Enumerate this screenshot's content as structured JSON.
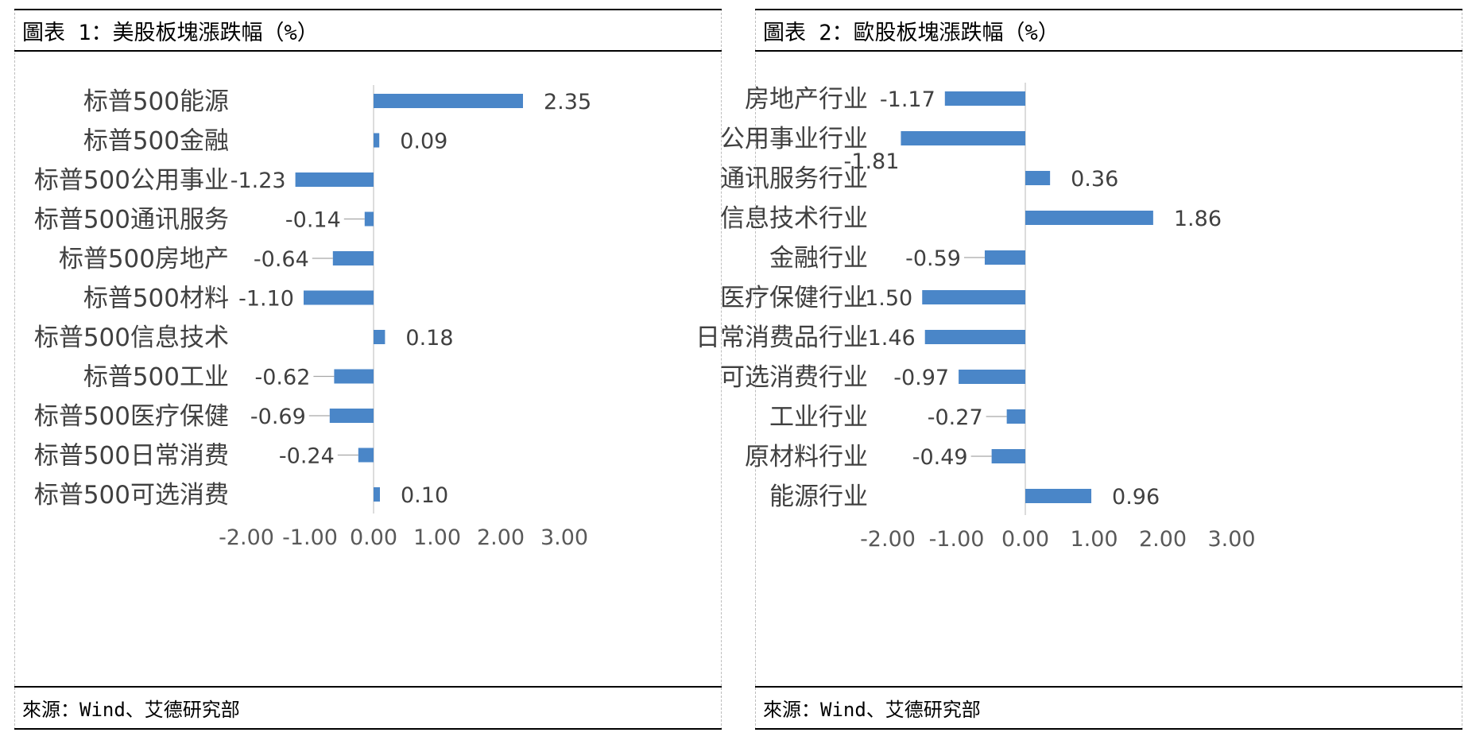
{
  "panels": {
    "us": {
      "title": "圖表 1：美股板塊漲跌幅（%）",
      "source": "來源：Wind、艾德研究部"
    },
    "eu": {
      "title": "圖表 2：歐股板塊漲跌幅（%）",
      "source": "來源：Wind、艾德研究部"
    }
  },
  "colors": {
    "bar": "#4a86c8",
    "text": "#404040",
    "axis": "#d0d0d0"
  },
  "chart_data": [
    {
      "type": "bar",
      "orientation": "horizontal",
      "categories": [
        "标普500能源",
        "标普500金融",
        "标普500公用事业",
        "标普500通讯服务",
        "标普500房地产",
        "标普500材料",
        "标普500信息技术",
        "标普500工业",
        "标普500医疗保健",
        "标普500日常消费",
        "标普500可选消费"
      ],
      "values": [
        2.35,
        0.09,
        -1.23,
        -0.14,
        -0.64,
        -1.1,
        0.18,
        -0.62,
        -0.69,
        -0.24,
        0.1
      ],
      "value_labels": [
        "2.35",
        "0.09",
        "-1.23",
        "-0.14",
        "-0.64",
        "-1.10",
        "0.18",
        "-0.62",
        "-0.69",
        "-0.24",
        "0.10"
      ],
      "xlim": [
        -2.0,
        3.0
      ],
      "ticks": [
        "-2.00",
        "-1.00",
        "0.00",
        "1.00",
        "2.00",
        "3.00"
      ],
      "title": "",
      "xlabel": "",
      "ylabel": "",
      "grid": false
    },
    {
      "type": "bar",
      "orientation": "horizontal",
      "categories": [
        "房地产行业",
        "公用事业行业",
        "通讯服务行业",
        "信息技术行业",
        "金融行业",
        "医疗保健行业",
        "日常消费品行业",
        "可选消费行业",
        "工业行业",
        "原材料行业",
        "能源行业"
      ],
      "values": [
        -1.17,
        -1.81,
        0.36,
        1.86,
        -0.59,
        -1.5,
        -1.46,
        -0.97,
        -0.27,
        -0.49,
        0.96
      ],
      "value_labels": [
        "-1.17",
        "-1.81",
        "0.36",
        "1.86",
        "-0.59",
        "-1.50",
        "-1.46",
        "-0.97",
        "-0.27",
        "-0.49",
        "0.96"
      ],
      "xlim": [
        -2.0,
        3.0
      ],
      "ticks": [
        "-2.00",
        "-1.00",
        "0.00",
        "1.00",
        "2.00",
        "3.00"
      ],
      "title": "",
      "xlabel": "",
      "ylabel": "",
      "grid": false
    }
  ]
}
